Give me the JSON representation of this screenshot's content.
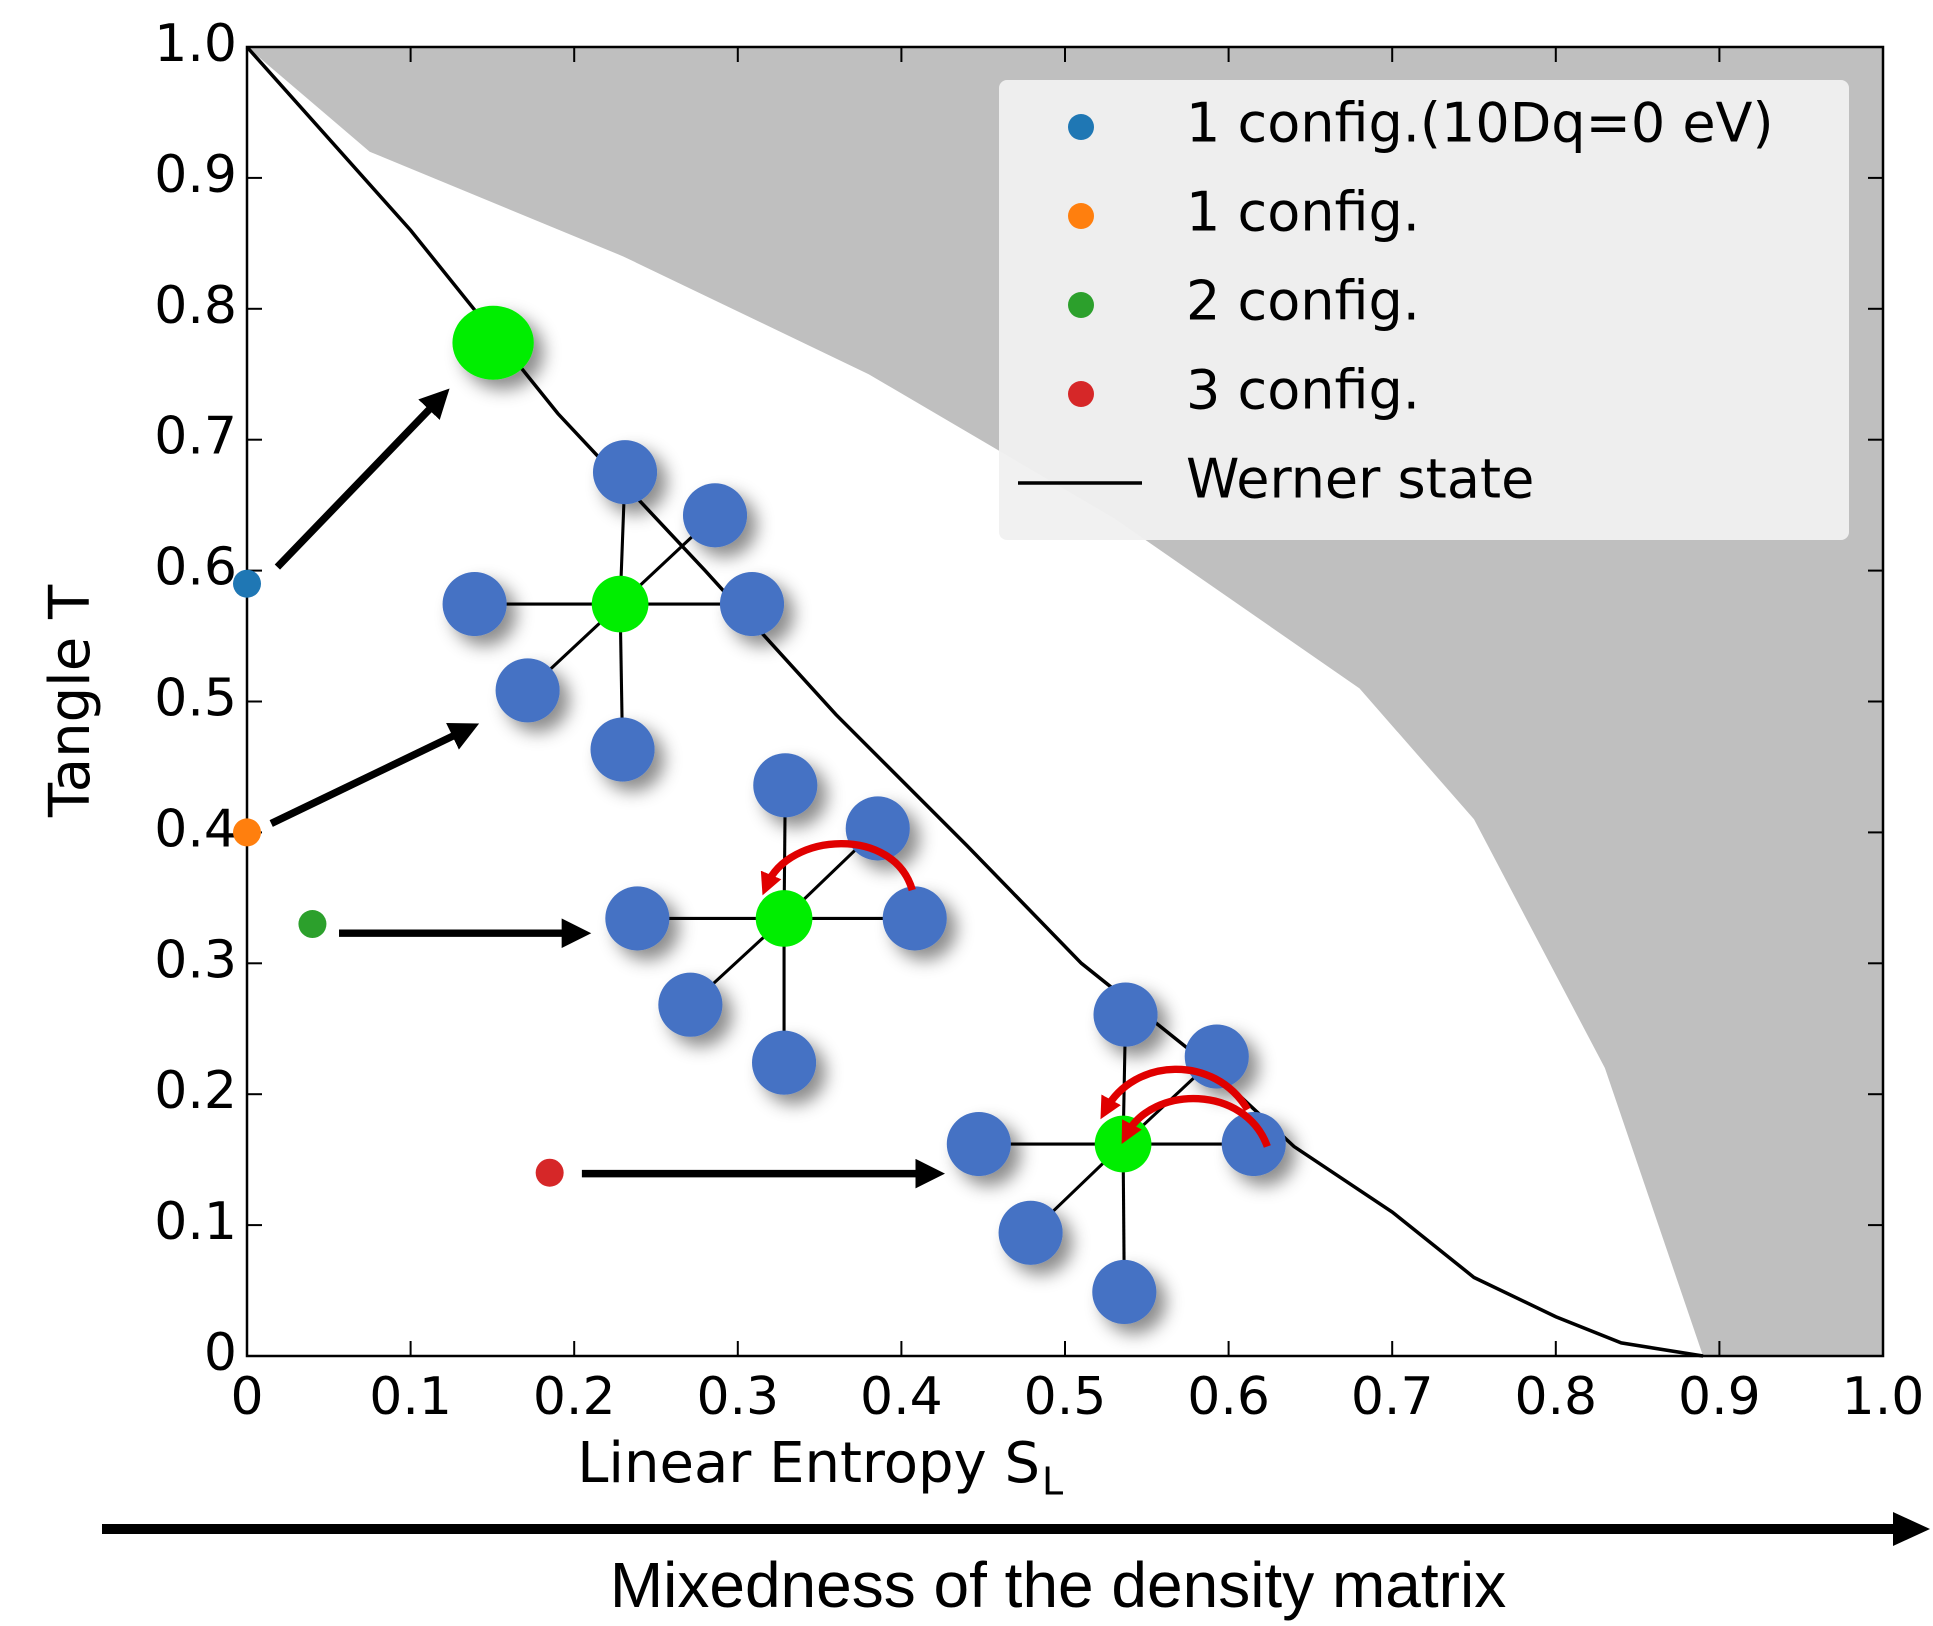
{
  "chart_data": {
    "type": "scatter",
    "xlabel": "Linear Entropy S",
    "xlabel_sub": "L",
    "ylabel": "Tangle T",
    "caption": "Mixedness of the density matrix",
    "xlim": [
      0,
      1
    ],
    "ylim": [
      0,
      1
    ],
    "xticks": [
      0,
      0.1,
      0.2,
      0.3,
      0.4,
      0.5,
      0.6,
      0.7,
      0.8,
      0.9,
      {
        "value": 1,
        "label": "1.0"
      }
    ],
    "yticks": [
      0,
      0.1,
      0.2,
      0.3,
      0.4,
      0.5,
      0.6,
      0.7,
      0.8,
      0.9,
      {
        "value": 1,
        "label": "1.0"
      }
    ],
    "legend": "upper right",
    "series": [
      {
        "name": "1 config.(10Dq=0 eV)",
        "color": "#1f77b4",
        "x": [
          0
        ],
        "values": [
          0.59
        ]
      },
      {
        "name": "1 config.",
        "color": "#ff7f0e",
        "x": [
          0
        ],
        "values": [
          0.4
        ]
      },
      {
        "name": "2 config.",
        "color": "#2ca02c",
        "x": [
          0.04
        ],
        "values": [
          0.33
        ]
      },
      {
        "name": "3 config.",
        "color": "#d62728",
        "x": [
          0.185
        ],
        "values": [
          0.14
        ]
      },
      {
        "name": "Werner state",
        "color": "#000000",
        "style": "line",
        "x": [
          0,
          0.1,
          0.19,
          0.28,
          0.36,
          0.44,
          0.51,
          0.58,
          0.64,
          0.7,
          0.75,
          0.8,
          0.84,
          0.89
        ],
        "values": [
          1,
          0.86,
          0.72,
          0.6,
          0.49,
          0.39,
          0.3,
          0.23,
          0.16,
          0.11,
          0.06,
          0.03,
          0.01,
          0
        ]
      }
    ],
    "region": {
      "color": "#bfbfbf",
      "x": [
        0,
        0.075,
        0.23,
        0.38,
        0.53,
        0.68,
        0.75,
        0.83,
        0.89
      ],
      "values": [
        1,
        0.92,
        0.84,
        0.75,
        0.64,
        0.51,
        0.41,
        0.22,
        0
      ]
    }
  }
}
